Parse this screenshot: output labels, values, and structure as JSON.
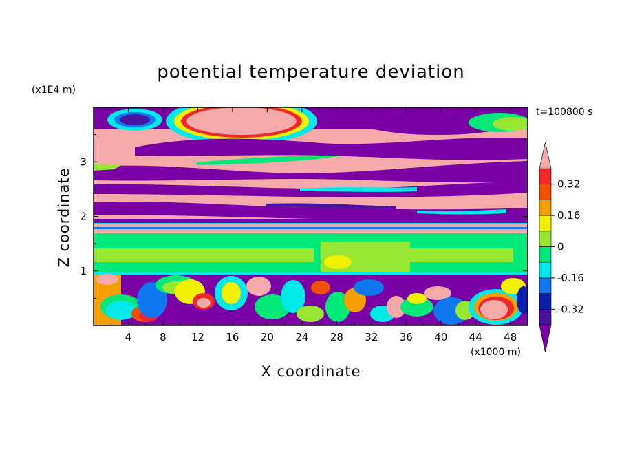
{
  "chart_data": {
    "type": "heatmap",
    "title": "potential temperature deviation",
    "xlabel": "X coordinate",
    "ylabel": "Z coordinate",
    "x_unit": "(x1000 m)",
    "y_unit": "(x1E4 m)",
    "time_label": "t=100800 s",
    "xlim": [
      0,
      50
    ],
    "ylim": [
      0,
      4
    ],
    "x_ticks": [
      4,
      8,
      12,
      16,
      20,
      24,
      28,
      32,
      36,
      40,
      44,
      48
    ],
    "y_ticks": [
      1,
      2,
      3
    ],
    "colorbar": {
      "levels": [
        -0.4,
        -0.32,
        -0.24,
        -0.16,
        -0.08,
        0,
        0.08,
        0.16,
        0.24,
        0.32,
        0.4
      ],
      "tick_labels": [
        "-0.32",
        "-0.16",
        "0",
        "0.16",
        "0.32"
      ],
      "tick_values": [
        -0.32,
        -0.16,
        0,
        0.16,
        0.32
      ],
      "colors": [
        "#7a00a6",
        "#4b14a0",
        "#0a1ea8",
        "#0f78f0",
        "#00e8e8",
        "#00e878",
        "#96e632",
        "#f0f000",
        "#f5a000",
        "#f05000",
        "#f02828",
        "#f5aaaa"
      ],
      "extend": "both"
    },
    "bands": [
      {
        "z": [
          0.0,
          1.0
        ],
        "kind": "turbulent"
      },
      {
        "z": [
          1.0,
          1.6
        ],
        "value": 0.0
      },
      {
        "z": [
          1.6,
          3.9
        ],
        "kind": "layered"
      }
    ]
  }
}
